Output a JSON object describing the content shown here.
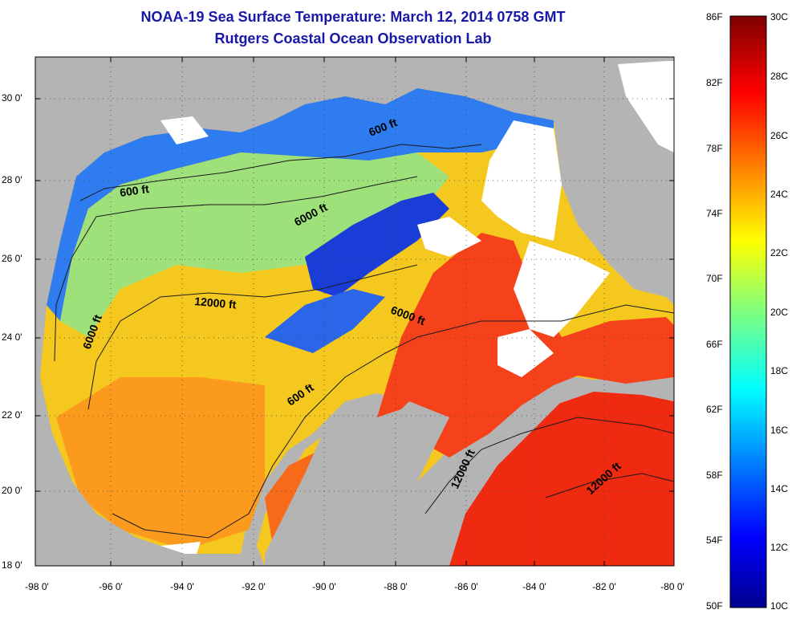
{
  "title": {
    "line1": "NOAA-19 Sea Surface Temperature:  March 12, 2014 0758 GMT",
    "line2": "Rutgers Coastal Ocean Observation Lab"
  },
  "map": {
    "lat_labels": [
      "30 0'",
      "28 0'",
      "26 0'",
      "24 0'",
      "22 0'",
      "20 0'",
      "18 0'"
    ],
    "lon_labels": [
      "-98 0'",
      "-96 0'",
      "-94 0'",
      "-92 0'",
      "-90 0'",
      "-88 0'",
      "-86 0'",
      "-84 0'",
      "-82 0'",
      "-80 0'"
    ],
    "contour_labels": [
      "600 ft",
      "600 ft",
      "6000 ft",
      "12000 ft",
      "6000 ft",
      "6000 ft",
      "600 ft",
      "12000 ft",
      "12000 ft"
    ],
    "lat_range": [
      18,
      31.5
    ],
    "lon_range": [
      -98,
      -80
    ],
    "colors": {
      "land": "#b4b4b4",
      "clouds": "#ffffff",
      "title": "#1818a8"
    }
  },
  "colorbar": {
    "fahrenheit_labels": [
      "86F",
      "82F",
      "78F",
      "74F",
      "70F",
      "66F",
      "62F",
      "58F",
      "54F",
      "50F"
    ],
    "celsius_labels": [
      "30C",
      "28C",
      "26C",
      "24C",
      "22C",
      "20C",
      "18C",
      "16C",
      "14C",
      "12C",
      "10C"
    ],
    "range_celsius": [
      10,
      30
    ],
    "colormap": "jet"
  }
}
